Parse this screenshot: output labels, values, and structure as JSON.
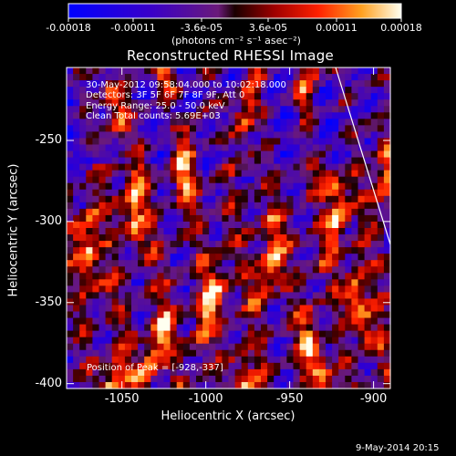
{
  "chart_data": {
    "type": "heatmap",
    "title": "Reconstructed RHESSI Image",
    "xlabel": "Heliocentric X (arcsec)",
    "ylabel": "Heliocentric Y (arcsec)",
    "xlim": [
      -1083,
      -890
    ],
    "ylim": [
      -403,
      -205
    ],
    "x_ticks": [
      "-1050",
      "-1000",
      "-950",
      "-900"
    ],
    "y_ticks": [
      "-250",
      "-300",
      "-350",
      "-400"
    ],
    "colorbar": {
      "ticks": [
        "-0.00018",
        "-0.00011",
        "-3.6e-05",
        "3.6e-05",
        "0.00011",
        "0.00018"
      ],
      "unit_label": "(photons cm⁻² s⁻¹ asec⁻²)",
      "range": [
        -0.00018,
        0.00018
      ]
    },
    "annotations": [
      "30-May-2012 09:58:04.000 to 10:02:18.000",
      "Detectors: 3F 5F 6F 7F 8F 9F, Att 0",
      "Energy Range: 25.0 - 50.0 keV",
      "Clean    Total counts: 5.69E+03"
    ],
    "peak_label": "Position of Peak = [-928,-337]",
    "timestamp": "9-May-2014 20:15"
  }
}
